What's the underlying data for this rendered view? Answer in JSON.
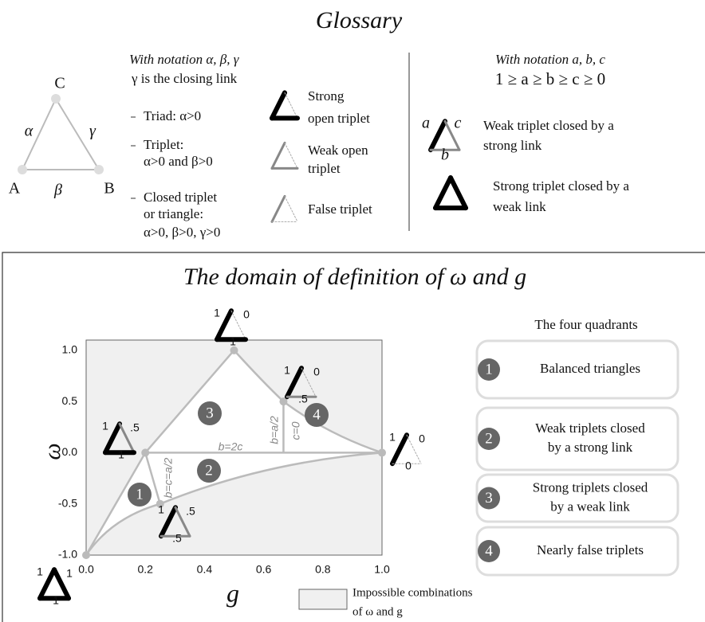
{
  "glossary": {
    "title": "Glossary",
    "triangle": {
      "vertices": [
        "C",
        "A",
        "B"
      ],
      "links": [
        "α",
        "β",
        "γ"
      ]
    },
    "left": {
      "heading": "With notation α, β, γ",
      "closing": "γ is the closing link",
      "items": [
        [
          "Triad: α>0"
        ],
        [
          "Triplet:",
          "α>0 and β>0"
        ],
        [
          "Closed triplet",
          "or triangle:",
          "α>0, β>0, γ>0"
        ]
      ]
    },
    "open_types": [
      [
        "Strong",
        "open triplet"
      ],
      [
        "Weak open",
        "triplet"
      ],
      [
        "False triplet"
      ]
    ],
    "right": {
      "heading": "With notation a, b, c",
      "order": "1 ≥ a ≥ b ≥ c ≥ 0",
      "icon_labels": [
        "a",
        "c",
        "b"
      ],
      "types": [
        [
          "Weak triplet closed by a",
          "strong link"
        ],
        [
          "Strong triplet closed by a",
          "weak link"
        ]
      ]
    }
  },
  "domain": {
    "title": "The domain of definition of ω and g",
    "xlabel": "g",
    "ylabel": "ω",
    "xlim": [
      0,
      1
    ],
    "ylim": [
      -1,
      1.1
    ],
    "xticks": [
      {
        "value": 0,
        "label": "0.0"
      },
      {
        "value": 0.2,
        "label": "0.2"
      },
      {
        "value": 0.4,
        "label": "0.4"
      },
      {
        "value": 0.6,
        "label": "0.6"
      },
      {
        "value": 0.8,
        "label": "0.8"
      },
      {
        "value": 1,
        "label": "1.0"
      }
    ],
    "yticks": [
      {
        "value": -1,
        "label": "-1.0"
      },
      {
        "value": -0.5,
        "label": "-0.5"
      },
      {
        "value": 0,
        "label": "0.0"
      },
      {
        "value": 0.5,
        "label": "0.5"
      },
      {
        "value": 1,
        "label": "1.0"
      }
    ],
    "points": [
      [
        0,
        -1
      ],
      [
        0.2,
        0
      ],
      [
        0.5,
        1
      ],
      [
        0.667,
        0.5
      ],
      [
        1,
        0
      ],
      [
        0.25,
        -0.5
      ]
    ],
    "icon_labels": [
      [
        "1",
        "1",
        "1"
      ],
      [
        "1",
        ".5",
        "1"
      ],
      [
        "1",
        "0",
        "1"
      ],
      [
        "1",
        "0",
        ".5"
      ],
      [
        "1",
        "0",
        "0"
      ],
      [
        "1",
        ".5",
        ".5"
      ]
    ],
    "line_labels": [
      "b=2c",
      "b=a/2",
      "c=0",
      "b=c=a/2"
    ],
    "region_numbers": [
      "1",
      "2",
      "3",
      "4"
    ],
    "quadrants_title": "The four quadrants",
    "quadrants": [
      [
        "Balanced triangles"
      ],
      [
        "Weak triplets closed",
        "by a strong link"
      ],
      [
        "Strong triplets closed",
        "by a weak link"
      ],
      [
        "Nearly false triplets"
      ]
    ],
    "legend": [
      "Impossible combinations",
      "of ω and g"
    ]
  }
}
